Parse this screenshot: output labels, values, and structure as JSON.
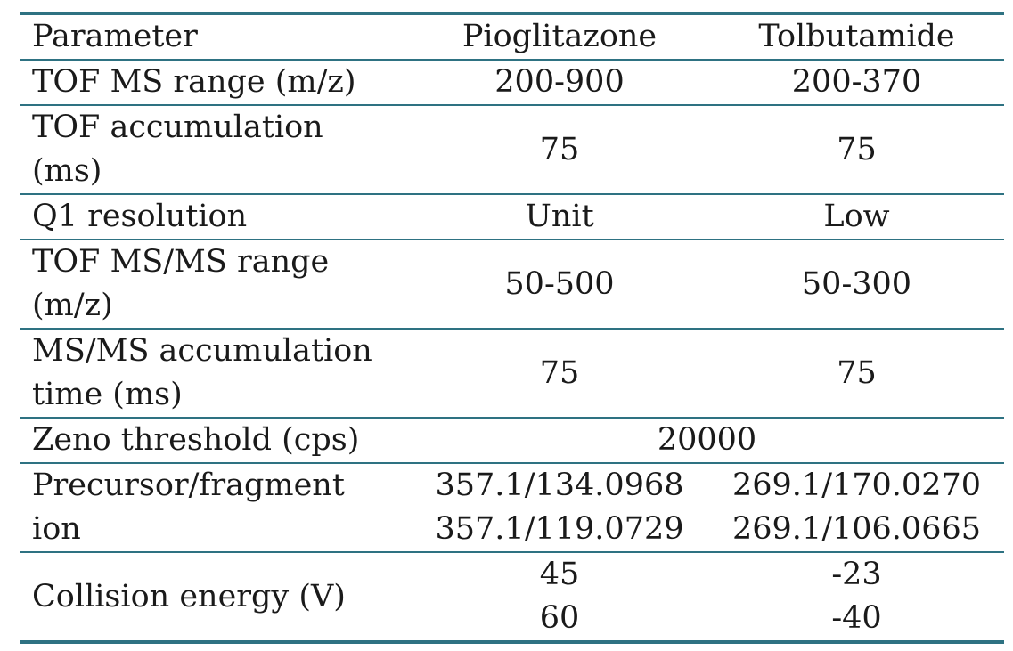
{
  "header": {
    "parameter": "Parameter",
    "col1": "Pioglitazone",
    "col2": "Tolbutamide"
  },
  "rows": {
    "tof_ms_range": {
      "label": "TOF MS range (m/z)",
      "v1": "200-900",
      "v2": "200-370"
    },
    "tof_accumulation": {
      "label_line1": "TOF accumulation",
      "label_line2": "(ms)",
      "v1": "75",
      "v2": "75"
    },
    "q1_resolution": {
      "label": "Q1 resolution",
      "v1": "Unit",
      "v2": "Low"
    },
    "tof_msms_range": {
      "label_line1": "TOF MS/MS range",
      "label_line2": "(m/z)",
      "v1": "50-500",
      "v2": "50-300"
    },
    "msms_accumulation": {
      "label_line1": "MS/MS accumulation",
      "label_line2": "time (ms)",
      "v1": "75",
      "v2": "75"
    },
    "zeno_threshold": {
      "label": "Zeno threshold (cps)",
      "value": "20000"
    },
    "precursor_fragment": {
      "label_line1": "Precursor/fragment",
      "label_line2": "ion",
      "v1_line1": "357.1/134.0968",
      "v1_line2": "357.1/119.0729",
      "v2_line1": "269.1/170.0270",
      "v2_line2": "269.1/106.0665"
    },
    "collision_energy": {
      "label": "Collision energy (V)",
      "v1_line1": "45",
      "v1_line2": "60",
      "v2_line1": "-23",
      "v2_line2": "-40"
    }
  }
}
